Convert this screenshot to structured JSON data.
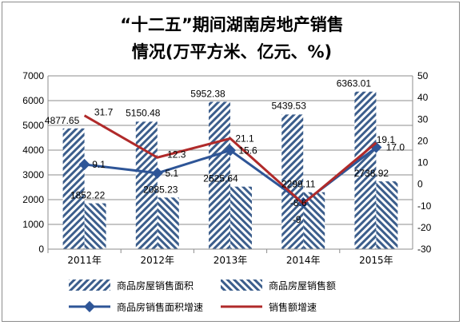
{
  "chart_data": {
    "type": "bar",
    "title_line1": "“十二五”期间湖南房地产销售",
    "title_line2": "情况(万平方米、亿元、%)",
    "categories": [
      "2011年",
      "2012年",
      "2013年",
      "2014年",
      "2015年"
    ],
    "bar_series": [
      {
        "name": "商品房屋销售面积",
        "values": [
          4877.65,
          5150.48,
          5952.38,
          5439.53,
          6363.01
        ],
        "labels": [
          "4877.65",
          "5150.48",
          "5952.38",
          "5439.53",
          "6363.01"
        ]
      },
      {
        "name": "商品房屋销售额",
        "values": [
          1852.22,
          2085.23,
          2525.64,
          2299.11,
          2738.92
        ],
        "labels": [
          "1852.22",
          "2085.23",
          "2525.64",
          "2299.11",
          "2738.92"
        ]
      }
    ],
    "line_series": [
      {
        "name": "商品房销售面积增速",
        "values": [
          9.1,
          5.1,
          15.6,
          -8.6,
          17.0
        ],
        "labels": [
          "9.1",
          "5.1",
          "15.6",
          "-8.6",
          "17.0"
        ],
        "color": "#2e5597"
      },
      {
        "name": "销售额增速",
        "values": [
          31.7,
          12.3,
          21.1,
          -9,
          19.1
        ],
        "labels": [
          "31.7",
          "12.3",
          "21.1",
          "-9",
          "19.1"
        ],
        "color": "#b02a2a"
      }
    ],
    "y_left": {
      "min": 0,
      "max": 7000,
      "ticks": [
        "0",
        "1000",
        "2000",
        "3000",
        "4000",
        "5000",
        "6000",
        "7000"
      ]
    },
    "y_right": {
      "min": -30,
      "max": 50,
      "ticks": [
        "-30",
        "-20",
        "-10",
        "0",
        "10",
        "20",
        "30",
        "40",
        "50"
      ]
    },
    "grid": true,
    "legend_position": "bottom",
    "bar_color": "#3c5e8c"
  }
}
